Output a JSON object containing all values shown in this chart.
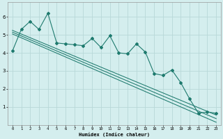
{
  "xlabel": "Humidex (Indice chaleur)",
  "background_color": "#d4eeee",
  "grid_color": "#b8d8d8",
  "line_color": "#1e7a6e",
  "xlim": [
    -0.5,
    23.5
  ],
  "ylim": [
    0.0,
    6.8
  ],
  "xticks": [
    0,
    1,
    2,
    3,
    4,
    5,
    6,
    7,
    8,
    9,
    10,
    11,
    12,
    13,
    14,
    15,
    16,
    17,
    18,
    19,
    20,
    21,
    22,
    23
  ],
  "yticks": [
    1,
    2,
    3,
    4,
    5,
    6
  ],
  "scatter_x": [
    0,
    1,
    2,
    3,
    4,
    5,
    6,
    7,
    8,
    9,
    10,
    11,
    12,
    13,
    14,
    15,
    16,
    17,
    18,
    19,
    20,
    21,
    22,
    23
  ],
  "scatter_y": [
    4.1,
    5.3,
    5.75,
    5.3,
    6.2,
    4.55,
    4.5,
    4.45,
    4.4,
    4.8,
    4.3,
    4.95,
    4.0,
    3.95,
    4.5,
    4.05,
    2.85,
    2.75,
    3.05,
    2.35,
    1.45,
    0.65,
    0.72,
    0.65
  ],
  "trend1_x": [
    0,
    23
  ],
  "trend1_y": [
    5.25,
    0.55
  ],
  "trend2_x": [
    0,
    23
  ],
  "trend2_y": [
    5.15,
    0.35
  ],
  "trend3_x": [
    0,
    23
  ],
  "trend3_y": [
    5.05,
    0.15
  ],
  "xlabel_fontsize": 5.0,
  "xtick_fontsize": 4.0,
  "ytick_fontsize": 5.0
}
